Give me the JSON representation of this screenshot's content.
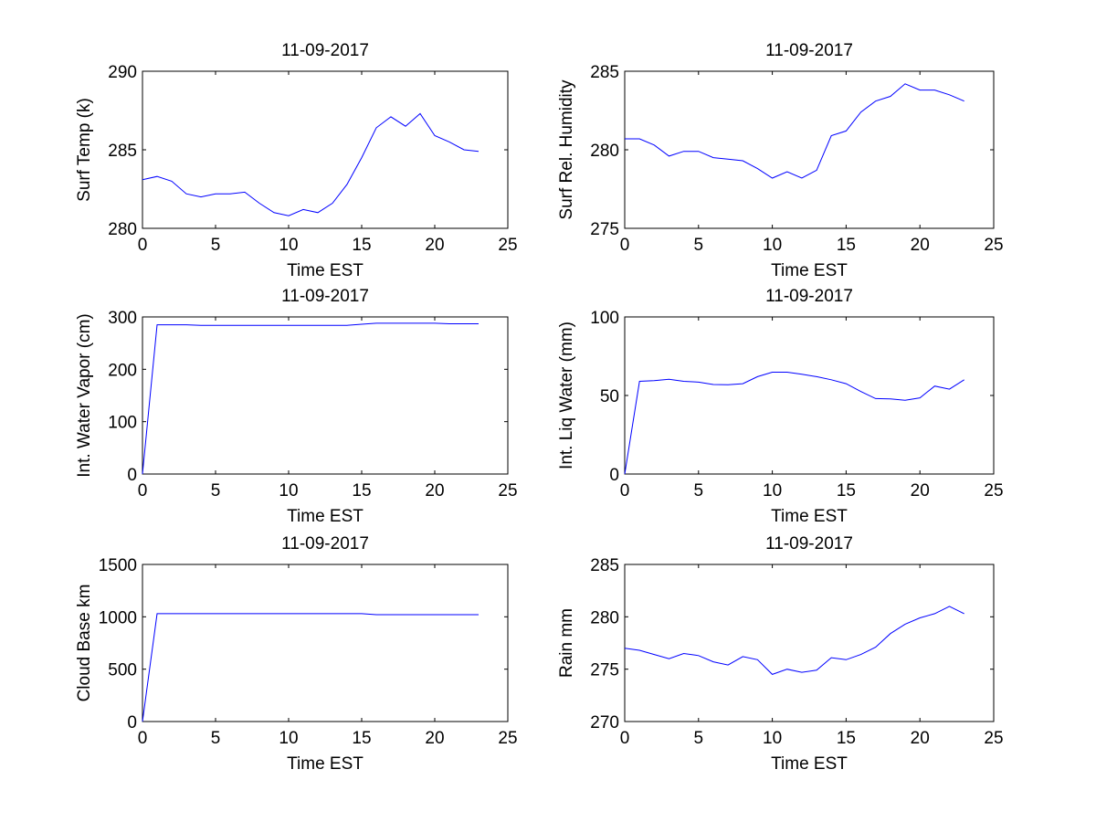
{
  "chart_data": [
    {
      "type": "line",
      "title": "11-09-2017",
      "xlabel": "Time EST",
      "ylabel": "Surf Temp (k)",
      "xlim": [
        0,
        25
      ],
      "ylim": [
        280,
        290
      ],
      "xticks": [
        0,
        5,
        10,
        15,
        20,
        25
      ],
      "yticks": [
        280,
        285,
        290
      ],
      "color": "#0000ff",
      "x": [
        0,
        1,
        2,
        3,
        4,
        5,
        6,
        7,
        8,
        9,
        10,
        11,
        12,
        13,
        14,
        15,
        16,
        17,
        18,
        19,
        20,
        21,
        22,
        23
      ],
      "y": [
        283.1,
        283.3,
        283.0,
        282.2,
        282.0,
        282.2,
        282.2,
        282.3,
        281.6,
        281.0,
        280.8,
        281.2,
        281.0,
        281.6,
        282.8,
        284.5,
        286.4,
        287.1,
        286.5,
        287.3,
        285.9,
        285.5,
        285.0,
        284.9
      ]
    },
    {
      "type": "line",
      "title": "11-09-2017",
      "xlabel": "Time EST",
      "ylabel": "Surf Rel. Humidity",
      "xlim": [
        0,
        25
      ],
      "ylim": [
        275,
        285
      ],
      "xticks": [
        0,
        5,
        10,
        15,
        20,
        25
      ],
      "yticks": [
        275,
        280,
        285
      ],
      "color": "#0000ff",
      "x": [
        0,
        1,
        2,
        3,
        4,
        5,
        6,
        7,
        8,
        9,
        10,
        11,
        12,
        13,
        14,
        15,
        16,
        17,
        18,
        19,
        20,
        21,
        22,
        23
      ],
      "y": [
        280.7,
        280.7,
        280.3,
        279.6,
        279.9,
        279.9,
        279.5,
        279.4,
        279.3,
        278.8,
        278.2,
        278.6,
        278.2,
        278.7,
        280.9,
        281.2,
        282.4,
        283.1,
        283.4,
        284.2,
        283.8,
        283.8,
        283.5,
        283.1
      ]
    },
    {
      "type": "line",
      "title": "11-09-2017",
      "xlabel": "Time EST",
      "ylabel": "Int. Water Vapor (cm)",
      "xlim": [
        0,
        25
      ],
      "ylim": [
        0,
        300
      ],
      "xticks": [
        0,
        5,
        10,
        15,
        20,
        25
      ],
      "yticks": [
        0,
        100,
        200,
        300
      ],
      "color": "#0000ff",
      "x": [
        0,
        1,
        2,
        3,
        4,
        5,
        6,
        7,
        8,
        9,
        10,
        11,
        12,
        13,
        14,
        15,
        16,
        17,
        18,
        19,
        20,
        21,
        22,
        23
      ],
      "y": [
        0,
        285,
        285,
        285,
        284,
        284,
        284,
        284,
        284,
        284,
        284,
        284,
        284,
        284,
        284,
        286,
        288,
        288,
        288,
        288,
        288,
        287,
        287,
        287
      ]
    },
    {
      "type": "line",
      "title": "11-09-2017",
      "xlabel": "Time EST",
      "ylabel": "Int. Liq Water (mm)",
      "xlim": [
        0,
        25
      ],
      "ylim": [
        0,
        100
      ],
      "xticks": [
        0,
        5,
        10,
        15,
        20,
        25
      ],
      "yticks": [
        0,
        50,
        100
      ],
      "color": "#0000ff",
      "x": [
        0,
        1,
        2,
        3,
        4,
        5,
        6,
        7,
        8,
        9,
        10,
        11,
        12,
        13,
        14,
        15,
        16,
        17,
        18,
        19,
        20,
        21,
        22,
        23
      ],
      "y": [
        0,
        59,
        59.5,
        60.3,
        59,
        58.5,
        57,
        56.8,
        57.5,
        62,
        64.8,
        64.8,
        63.5,
        62,
        60,
        57.5,
        52.5,
        48,
        47.8,
        47,
        48.5,
        56,
        54,
        60
      ]
    },
    {
      "type": "line",
      "title": "11-09-2017",
      "xlabel": "Time EST",
      "ylabel": "Cloud Base km",
      "xlim": [
        0,
        25
      ],
      "ylim": [
        0,
        1500
      ],
      "xticks": [
        0,
        5,
        10,
        15,
        20,
        25
      ],
      "yticks": [
        0,
        500,
        1000,
        1500
      ],
      "color": "#0000ff",
      "x": [
        0,
        1,
        2,
        3,
        4,
        5,
        6,
        7,
        8,
        9,
        10,
        11,
        12,
        13,
        14,
        15,
        16,
        17,
        18,
        19,
        20,
        21,
        22,
        23
      ],
      "y": [
        0,
        1030,
        1030,
        1030,
        1030,
        1030,
        1030,
        1030,
        1030,
        1030,
        1030,
        1030,
        1030,
        1030,
        1030,
        1030,
        1020,
        1020,
        1020,
        1020,
        1020,
        1020,
        1020,
        1020
      ]
    },
    {
      "type": "line",
      "title": "11-09-2017",
      "xlabel": "Time EST",
      "ylabel": "Rain mm",
      "xlim": [
        0,
        25
      ],
      "ylim": [
        270,
        285
      ],
      "xticks": [
        0,
        5,
        10,
        15,
        20,
        25
      ],
      "yticks": [
        270,
        275,
        280,
        285
      ],
      "color": "#0000ff",
      "x": [
        0,
        1,
        2,
        3,
        4,
        5,
        6,
        7,
        8,
        9,
        10,
        11,
        12,
        13,
        14,
        15,
        16,
        17,
        18,
        19,
        20,
        21,
        22,
        23
      ],
      "y": [
        277.0,
        276.8,
        276.4,
        276.0,
        276.5,
        276.3,
        275.7,
        275.4,
        276.2,
        275.9,
        274.5,
        275.0,
        274.7,
        274.9,
        276.1,
        275.9,
        276.4,
        277.1,
        278.4,
        279.3,
        279.9,
        280.3,
        281.0,
        280.3
      ]
    }
  ]
}
